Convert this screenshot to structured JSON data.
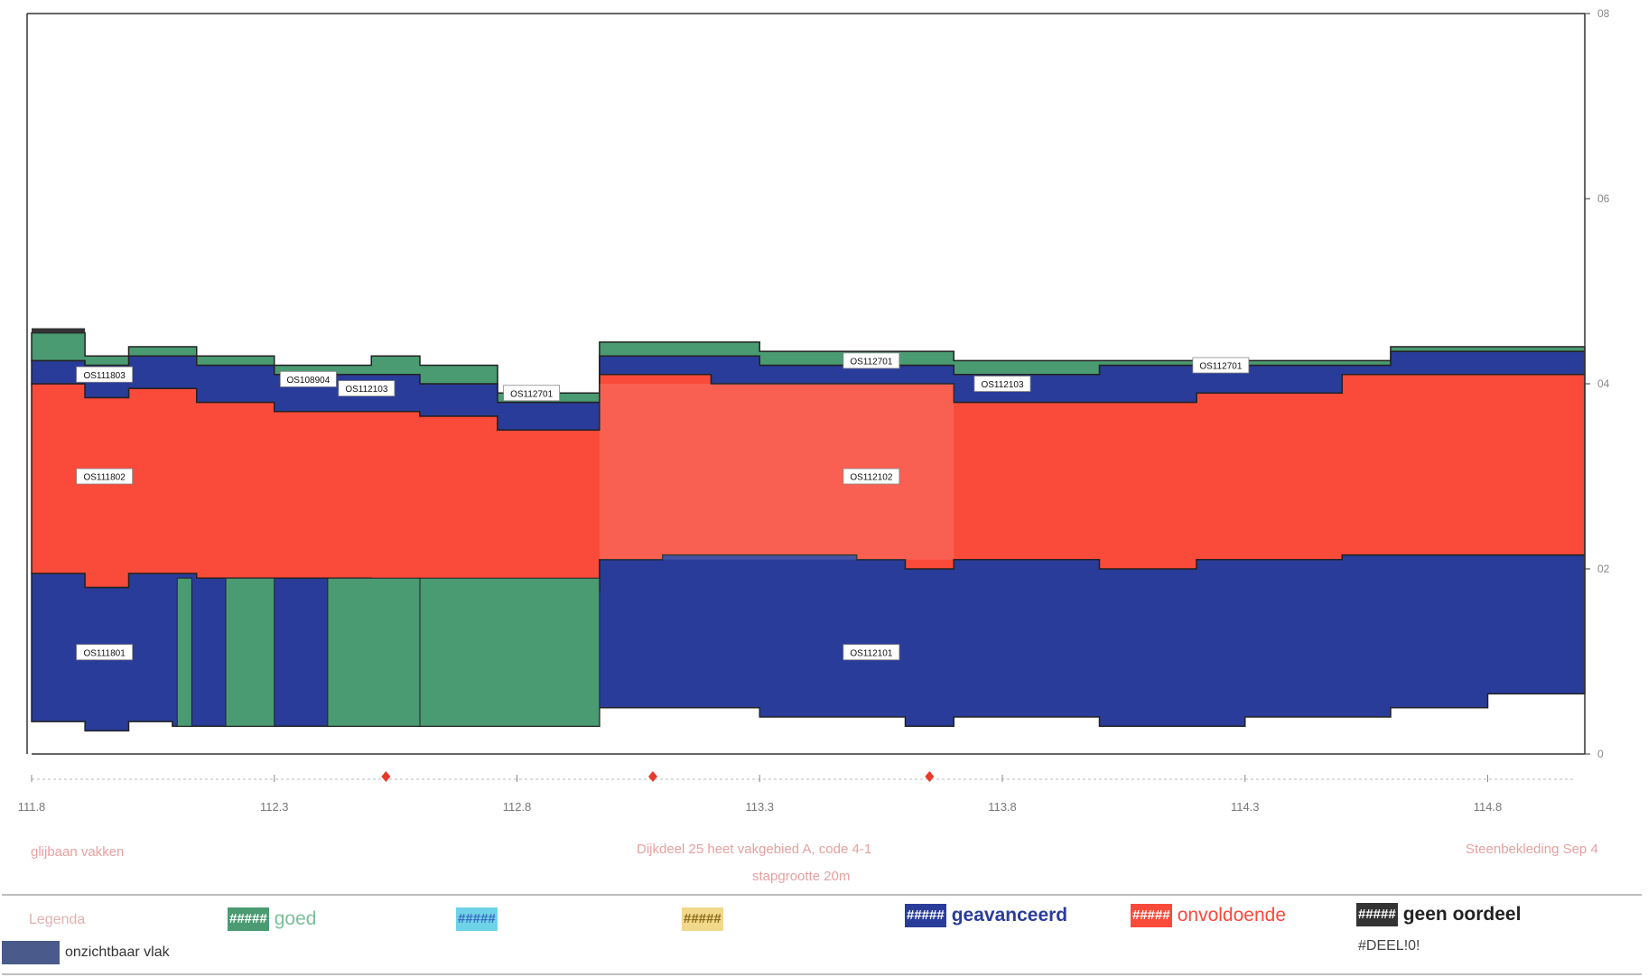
{
  "chart_data": {
    "type": "area",
    "x_ticks": [
      "111.8",
      "112.3",
      "112.8",
      "113.3",
      "113.8",
      "114.3",
      "114.8"
    ],
    "y_ticks": [
      "0",
      "02",
      "04",
      "06",
      "08"
    ],
    "xlim": [
      111.8,
      115.0
    ],
    "ylim": [
      0,
      0.8
    ],
    "footer": {
      "left": "glijbaan vakken",
      "center": "Dijkdeel 25 heet vakgebied A, code 4-1",
      "center2": "stapgrootte 20m",
      "right": "Steenbekleding Sep 4"
    },
    "bands": [
      {
        "category": "geavanceerd",
        "vertices": [
          [
            111.8,
            0.035
          ],
          [
            111.91,
            0.035
          ],
          [
            111.91,
            0.025
          ],
          [
            112.0,
            0.025
          ],
          [
            112.0,
            0.035
          ],
          [
            112.09,
            0.035
          ],
          [
            112.09,
            0.03
          ],
          [
            112.8,
            0.03
          ],
          [
            112.8,
            0.03
          ],
          [
            112.97,
            0.03
          ],
          [
            112.97,
            0.05
          ],
          [
            113.3,
            0.05
          ],
          [
            113.3,
            0.04
          ],
          [
            113.6,
            0.04
          ],
          [
            113.6,
            0.03
          ],
          [
            113.7,
            0.03
          ],
          [
            113.7,
            0.04
          ],
          [
            114.0,
            0.04
          ],
          [
            114.0,
            0.03
          ],
          [
            114.3,
            0.03
          ],
          [
            114.3,
            0.04
          ],
          [
            114.6,
            0.04
          ],
          [
            114.6,
            0.05
          ],
          [
            114.8,
            0.05
          ],
          [
            114.8,
            0.065
          ],
          [
            115.0,
            0.065
          ]
        ],
        "tops": [
          [
            111.8,
            0.195
          ],
          [
            111.91,
            0.195
          ],
          [
            111.91,
            0.18
          ],
          [
            112.0,
            0.18
          ],
          [
            112.0,
            0.195
          ],
          [
            112.09,
            0.195
          ],
          [
            112.09,
            0.19
          ],
          [
            112.97,
            0.19
          ],
          [
            112.97,
            0.21
          ],
          [
            113.1,
            0.21
          ],
          [
            113.1,
            0.215
          ],
          [
            113.5,
            0.215
          ],
          [
            113.5,
            0.21
          ],
          [
            113.6,
            0.21
          ],
          [
            113.6,
            0.2
          ],
          [
            113.7,
            0.2
          ],
          [
            113.7,
            0.21
          ],
          [
            114.0,
            0.21
          ],
          [
            114.0,
            0.2
          ],
          [
            114.2,
            0.2
          ],
          [
            114.2,
            0.21
          ],
          [
            114.5,
            0.21
          ],
          [
            114.5,
            0.215
          ],
          [
            115.0,
            0.215
          ]
        ]
      }
    ],
    "regions": [
      {
        "label": "OS111801",
        "category": "geavanceerd"
      },
      {
        "label": "OS111802",
        "category": "onvoldoende"
      },
      {
        "label": "OS111803",
        "category": "geavanceerd"
      },
      {
        "label": "OS108904",
        "category": "goed"
      },
      {
        "label": "OS112103",
        "category": "geavanceerd"
      },
      {
        "label": "OS112701",
        "category": "geavanceerd"
      },
      {
        "label": "OS112101",
        "category": "geavanceerd"
      },
      {
        "label": "OS112102",
        "category": "onvoldoende"
      },
      {
        "label": "OS112701",
        "category": "geavanceerd"
      },
      {
        "label": "OS112103",
        "category": "geavanceerd"
      },
      {
        "label": "OS112701",
        "category": "geavanceerd"
      }
    ],
    "markers_x": [
      112.53,
      113.08,
      113.65
    ],
    "legend": {
      "title": "Legenda",
      "items": [
        {
          "swatch": "#####",
          "label": "goed",
          "color": "#4a9a72",
          "text_color": "#5aa37a"
        },
        {
          "swatch": "#####",
          "label": "",
          "color": "#6fd3e8",
          "text_color": "#4a9ad4"
        },
        {
          "swatch": "#####",
          "label": "",
          "color": "#f2d88a",
          "text_color": "#9a7a2a"
        },
        {
          "swatch": "#####",
          "label": "geavanceerd",
          "color": "#2a3c9a",
          "text_color": "#2a3c9a"
        },
        {
          "swatch": "#####",
          "label": "onvoldoende",
          "color": "#fa4a3a",
          "text_color": "#fa4a3a"
        },
        {
          "swatch": "#####",
          "label": "geen oordeel",
          "color": "#333333",
          "text_color": "#222222"
        },
        {
          "swatch": "",
          "label": "onzichtbaar vlak",
          "color": "#4a5a8a",
          "text_color": "#333333"
        }
      ],
      "note": "#DEEL!0!"
    },
    "colors": {
      "geavanceerd": "#2a3c9a",
      "onvoldoende": "#fa4a3a",
      "goed": "#4a9a72",
      "geen_oordeel": "#333333",
      "outline": "#222222"
    }
  }
}
